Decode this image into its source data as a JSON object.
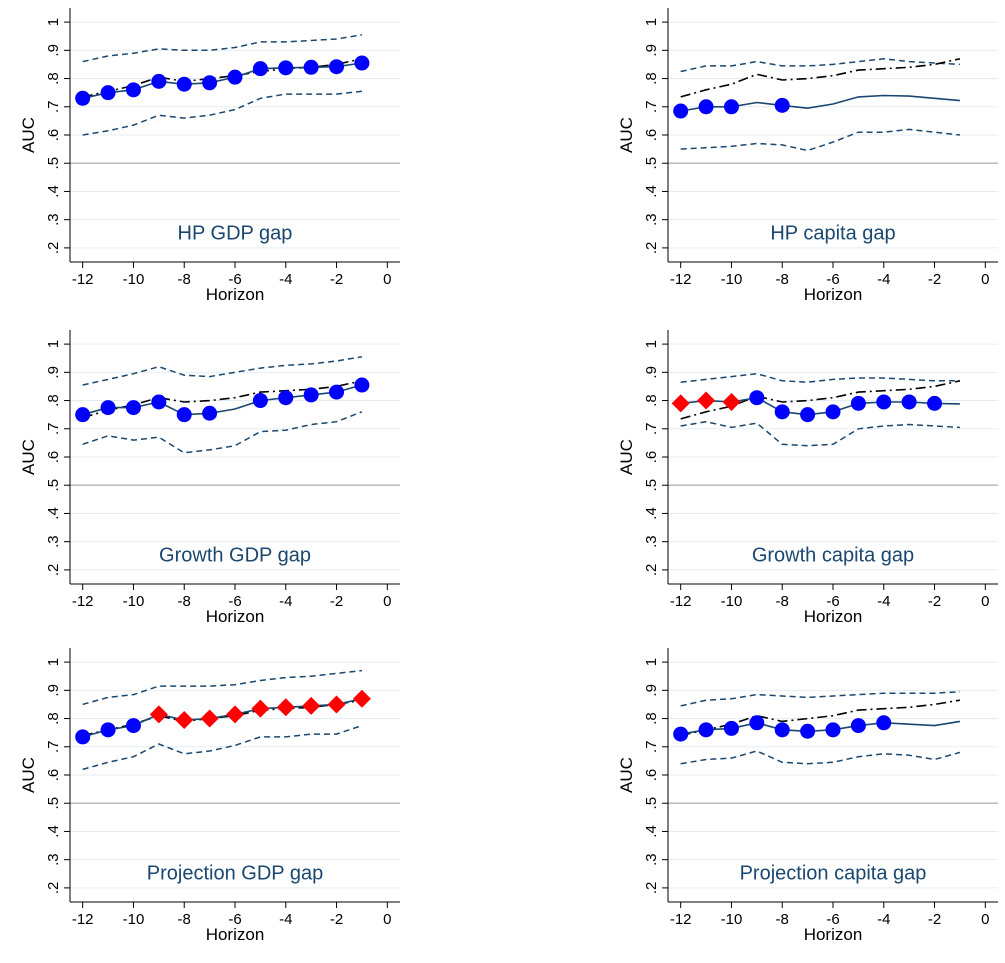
{
  "colors": {
    "benchmark": "#000000",
    "series_line": "#1a476f",
    "ci": "#1a476f",
    "marker_circle": "#0000ff",
    "marker_diamond": "#ff0000",
    "reference": "#b3b3b3",
    "grid": "#e6edf2",
    "title": "#1a476f"
  },
  "chart_data": [
    {
      "type": "line",
      "title": "HP GDP gap",
      "xlabel": "Horizon",
      "ylabel": "AUC",
      "xlim": [
        -12.5,
        0.5
      ],
      "ylim": [
        0.15,
        1.05
      ],
      "xticks": [
        -12,
        -10,
        -8,
        -6,
        -4,
        -2,
        0
      ],
      "xtick_labels": [
        "-12",
        "-10",
        "-8",
        "-6",
        "-4",
        "-2",
        "0"
      ],
      "yticks": [
        0.2,
        0.3,
        0.4,
        0.5,
        0.6,
        0.7,
        0.8,
        0.9,
        1.0
      ],
      "ytick_labels": [
        ".2",
        ".3",
        ".4",
        ".5",
        ".6",
        ".7",
        ".8",
        ".9",
        "1"
      ],
      "reference_line": 0.5,
      "grid": true,
      "x": [
        -12,
        -11,
        -10,
        -9,
        -8,
        -7,
        -6,
        -5,
        -4,
        -3,
        -2,
        -1
      ],
      "benchmark": [
        0.735,
        0.755,
        0.775,
        0.805,
        0.79,
        0.8,
        0.81,
        0.825,
        0.835,
        0.84,
        0.85,
        0.87
      ],
      "series": [
        0.73,
        0.75,
        0.76,
        0.79,
        0.78,
        0.785,
        0.805,
        0.835,
        0.838,
        0.84,
        0.842,
        0.855
      ],
      "ci_upper": [
        0.86,
        0.88,
        0.89,
        0.905,
        0.9,
        0.9,
        0.91,
        0.93,
        0.93,
        0.935,
        0.94,
        0.955
      ],
      "ci_lower": [
        0.6,
        0.615,
        0.635,
        0.67,
        0.66,
        0.67,
        0.69,
        0.73,
        0.745,
        0.745,
        0.745,
        0.755
      ],
      "markers": [
        "circle",
        "circle",
        "circle",
        "circle",
        "circle",
        "circle",
        "circle",
        "circle",
        "circle",
        "circle",
        "circle",
        "circle"
      ]
    },
    {
      "type": "line",
      "title": "HP capita gap",
      "xlabel": "Horizon",
      "ylabel": "AUC",
      "xlim": [
        -12.5,
        0.5
      ],
      "ylim": [
        0.15,
        1.05
      ],
      "xticks": [
        -12,
        -10,
        -8,
        -6,
        -4,
        -2,
        0
      ],
      "xtick_labels": [
        "-12",
        "-10",
        "-8",
        "-6",
        "-4",
        "-2",
        "0"
      ],
      "yticks": [
        0.2,
        0.3,
        0.4,
        0.5,
        0.6,
        0.7,
        0.8,
        0.9,
        1.0
      ],
      "ytick_labels": [
        ".2",
        ".3",
        ".4",
        ".5",
        ".6",
        ".7",
        ".8",
        ".9",
        "1"
      ],
      "reference_line": 0.5,
      "grid": true,
      "x": [
        -12,
        -11,
        -10,
        -9,
        -8,
        -7,
        -6,
        -5,
        -4,
        -3,
        -2,
        -1
      ],
      "benchmark": [
        0.735,
        0.76,
        0.78,
        0.815,
        0.795,
        0.8,
        0.81,
        0.83,
        0.835,
        0.84,
        0.85,
        0.87
      ],
      "series": [
        0.685,
        0.7,
        0.7,
        0.715,
        0.705,
        0.695,
        0.71,
        0.735,
        0.74,
        0.738,
        0.73,
        0.722
      ],
      "ci_upper": [
        0.825,
        0.845,
        0.845,
        0.86,
        0.845,
        0.845,
        0.85,
        0.86,
        0.87,
        0.86,
        0.855,
        0.85
      ],
      "ci_lower": [
        0.55,
        0.555,
        0.56,
        0.57,
        0.565,
        0.545,
        0.575,
        0.61,
        0.61,
        0.62,
        0.61,
        0.6
      ],
      "markers": [
        "circle",
        "circle",
        "circle",
        "none",
        "circle",
        "none",
        "none",
        "none",
        "none",
        "none",
        "none",
        "none"
      ]
    },
    {
      "type": "line",
      "title": "Growth GDP gap",
      "xlabel": "Horizon",
      "ylabel": "AUC",
      "xlim": [
        -12.5,
        0.5
      ],
      "ylim": [
        0.15,
        1.05
      ],
      "xticks": [
        -12,
        -10,
        -8,
        -6,
        -4,
        -2,
        0
      ],
      "xtick_labels": [
        "-12",
        "-10",
        "-8",
        "-6",
        "-4",
        "-2",
        "0"
      ],
      "yticks": [
        0.2,
        0.3,
        0.4,
        0.5,
        0.6,
        0.7,
        0.8,
        0.9,
        1.0
      ],
      "ytick_labels": [
        ".2",
        ".3",
        ".4",
        ".5",
        ".6",
        ".7",
        ".8",
        ".9",
        "1"
      ],
      "reference_line": 0.5,
      "grid": true,
      "x": [
        -12,
        -11,
        -10,
        -9,
        -8,
        -7,
        -6,
        -5,
        -4,
        -3,
        -2,
        -1
      ],
      "benchmark": [
        0.74,
        0.765,
        0.785,
        0.81,
        0.795,
        0.8,
        0.81,
        0.83,
        0.835,
        0.84,
        0.85,
        0.87
      ],
      "series": [
        0.75,
        0.775,
        0.775,
        0.795,
        0.75,
        0.755,
        0.77,
        0.8,
        0.81,
        0.82,
        0.83,
        0.855
      ],
      "ci_upper": [
        0.855,
        0.875,
        0.895,
        0.92,
        0.89,
        0.885,
        0.9,
        0.915,
        0.925,
        0.93,
        0.94,
        0.955
      ],
      "ci_lower": [
        0.645,
        0.675,
        0.66,
        0.67,
        0.615,
        0.625,
        0.64,
        0.69,
        0.695,
        0.715,
        0.725,
        0.76
      ],
      "markers": [
        "circle",
        "circle",
        "circle",
        "circle",
        "circle",
        "circle",
        "none",
        "circle",
        "circle",
        "circle",
        "circle",
        "circle"
      ]
    },
    {
      "type": "line",
      "title": "Growth capita gap",
      "xlabel": "Horizon",
      "ylabel": "AUC",
      "xlim": [
        -12.5,
        0.5
      ],
      "ylim": [
        0.15,
        1.05
      ],
      "xticks": [
        -12,
        -10,
        -8,
        -6,
        -4,
        -2,
        0
      ],
      "xtick_labels": [
        "-12",
        "-10",
        "-8",
        "-6",
        "-4",
        "-2",
        "0"
      ],
      "yticks": [
        0.2,
        0.3,
        0.4,
        0.5,
        0.6,
        0.7,
        0.8,
        0.9,
        1.0
      ],
      "ytick_labels": [
        ".2",
        ".3",
        ".4",
        ".5",
        ".6",
        ".7",
        ".8",
        ".9",
        "1"
      ],
      "reference_line": 0.5,
      "grid": true,
      "x": [
        -12,
        -11,
        -10,
        -9,
        -8,
        -7,
        -6,
        -5,
        -4,
        -3,
        -2,
        -1
      ],
      "benchmark": [
        0.735,
        0.76,
        0.78,
        0.815,
        0.795,
        0.8,
        0.81,
        0.83,
        0.835,
        0.84,
        0.85,
        0.87
      ],
      "series": [
        0.79,
        0.8,
        0.795,
        0.81,
        0.76,
        0.75,
        0.76,
        0.79,
        0.795,
        0.795,
        0.79,
        0.788
      ],
      "ci_upper": [
        0.865,
        0.875,
        0.885,
        0.895,
        0.87,
        0.865,
        0.875,
        0.88,
        0.88,
        0.875,
        0.87,
        0.87
      ],
      "ci_lower": [
        0.71,
        0.725,
        0.705,
        0.72,
        0.645,
        0.64,
        0.645,
        0.7,
        0.71,
        0.715,
        0.71,
        0.705
      ],
      "markers": [
        "diamond",
        "diamond",
        "diamond",
        "circle",
        "circle",
        "circle",
        "circle",
        "circle",
        "circle",
        "circle",
        "circle",
        "none"
      ]
    },
    {
      "type": "line",
      "title": "Projection GDP gap",
      "xlabel": "Horizon",
      "ylabel": "AUC",
      "xlim": [
        -12.5,
        0.5
      ],
      "ylim": [
        0.15,
        1.05
      ],
      "xticks": [
        -12,
        -10,
        -8,
        -6,
        -4,
        -2,
        0
      ],
      "xtick_labels": [
        "-12",
        "-10",
        "-8",
        "-6",
        "-4",
        "-2",
        "0"
      ],
      "yticks": [
        0.2,
        0.3,
        0.4,
        0.5,
        0.6,
        0.7,
        0.8,
        0.9,
        1.0
      ],
      "ytick_labels": [
        ".2",
        ".3",
        ".4",
        ".5",
        ".6",
        ".7",
        ".8",
        ".9",
        "1"
      ],
      "reference_line": 0.5,
      "grid": true,
      "x": [
        -12,
        -11,
        -10,
        -9,
        -8,
        -7,
        -6,
        -5,
        -4,
        -3,
        -2,
        -1
      ],
      "benchmark": [
        0.74,
        0.76,
        0.78,
        0.81,
        0.79,
        0.8,
        0.81,
        0.83,
        0.835,
        0.84,
        0.85,
        0.865
      ],
      "series": [
        0.735,
        0.76,
        0.775,
        0.815,
        0.795,
        0.8,
        0.815,
        0.835,
        0.84,
        0.845,
        0.85,
        0.87
      ],
      "ci_upper": [
        0.85,
        0.875,
        0.885,
        0.915,
        0.915,
        0.915,
        0.92,
        0.935,
        0.945,
        0.95,
        0.96,
        0.97
      ],
      "ci_lower": [
        0.62,
        0.645,
        0.665,
        0.71,
        0.675,
        0.685,
        0.705,
        0.735,
        0.735,
        0.745,
        0.745,
        0.775
      ],
      "markers": [
        "circle",
        "circle",
        "circle",
        "diamond",
        "diamond",
        "diamond",
        "diamond",
        "diamond",
        "diamond",
        "diamond",
        "diamond",
        "diamond"
      ]
    },
    {
      "type": "line",
      "title": "Projection capita gap",
      "xlabel": "Horizon",
      "ylabel": "AUC",
      "xlim": [
        -12.5,
        0.5
      ],
      "ylim": [
        0.15,
        1.05
      ],
      "xticks": [
        -12,
        -10,
        -8,
        -6,
        -4,
        -2,
        0
      ],
      "xtick_labels": [
        "-12",
        "-10",
        "-8",
        "-6",
        "-4",
        "-2",
        "0"
      ],
      "yticks": [
        0.2,
        0.3,
        0.4,
        0.5,
        0.6,
        0.7,
        0.8,
        0.9,
        1.0
      ],
      "ytick_labels": [
        ".2",
        ".3",
        ".4",
        ".5",
        ".6",
        ".7",
        ".8",
        ".9",
        "1"
      ],
      "reference_line": 0.5,
      "grid": true,
      "x": [
        -12,
        -11,
        -10,
        -9,
        -8,
        -7,
        -6,
        -5,
        -4,
        -3,
        -2,
        -1
      ],
      "benchmark": [
        0.74,
        0.76,
        0.78,
        0.81,
        0.79,
        0.8,
        0.81,
        0.83,
        0.835,
        0.84,
        0.85,
        0.865
      ],
      "series": [
        0.745,
        0.76,
        0.765,
        0.785,
        0.76,
        0.755,
        0.76,
        0.775,
        0.785,
        0.78,
        0.775,
        0.79
      ],
      "ci_upper": [
        0.845,
        0.865,
        0.87,
        0.885,
        0.88,
        0.875,
        0.88,
        0.885,
        0.89,
        0.89,
        0.89,
        0.895
      ],
      "ci_lower": [
        0.64,
        0.655,
        0.66,
        0.685,
        0.645,
        0.64,
        0.645,
        0.665,
        0.675,
        0.67,
        0.655,
        0.68
      ],
      "markers": [
        "circle",
        "circle",
        "circle",
        "circle",
        "circle",
        "circle",
        "circle",
        "circle",
        "circle",
        "none",
        "none",
        "none"
      ]
    }
  ]
}
